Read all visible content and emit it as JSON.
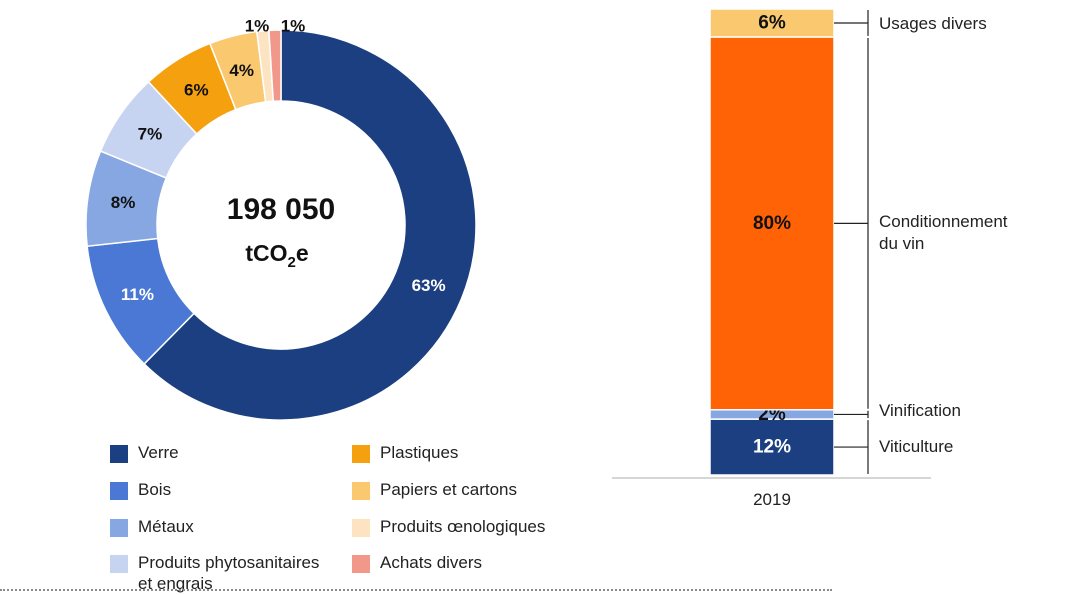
{
  "chart_data": [
    {
      "type": "pie",
      "center_value": "198 050",
      "center_unit": {
        "prefix": "tCO",
        "subscript": "2",
        "suffix": "e"
      },
      "categories": [
        "Verre",
        "Bois",
        "Métaux",
        "Produits phytosanitaires et engrais",
        "Plastiques",
        "Papiers et cartons",
        "Produits œnologiques",
        "Achats divers"
      ],
      "values": [
        63,
        11,
        8,
        7,
        6,
        4,
        1,
        1
      ],
      "labels": [
        "63%",
        "11%",
        "8%",
        "7%",
        "6%",
        "4%",
        "1%",
        "1%"
      ],
      "colors": [
        "#1c3f82",
        "#4a78d4",
        "#87a7e3",
        "#c6d4f1",
        "#f5a00f",
        "#fac86f",
        "#fce4c2",
        "#f2988a"
      ],
      "label_colors": [
        "#ffffff",
        "#ffffff",
        "#111111",
        "#111111",
        "#111111",
        "#111111",
        "#111111",
        "#111111"
      ],
      "legend": [
        {
          "label": "Verre",
          "color": "#1c3f82"
        },
        {
          "label": "Plastiques",
          "color": "#f5a00f"
        },
        {
          "label": "Bois",
          "color": "#4a78d4"
        },
        {
          "label": "Papiers et cartons",
          "color": "#fac86f"
        },
        {
          "label": "Métaux",
          "color": "#87a7e3"
        },
        {
          "label": "Produits œnologiques",
          "color": "#fce4c2"
        },
        {
          "label": "Produits phytosanitaires et engrais",
          "color": "#c6d4f1"
        },
        {
          "label": "Achats divers",
          "color": "#f2988a"
        }
      ],
      "legend_placement": "bottom"
    },
    {
      "type": "bar",
      "stacked": true,
      "categories": [
        "2019"
      ],
      "series": [
        {
          "name": "Viticulture",
          "values": [
            12
          ],
          "label": "12%",
          "color": "#1c3f82",
          "label_color": "#ffffff"
        },
        {
          "name": "Vinification",
          "values": [
            2
          ],
          "label": "2%",
          "color": "#87a7e3",
          "label_color": "#111111"
        },
        {
          "name": "Conditionnement du vin",
          "values": [
            80
          ],
          "label": "80%",
          "color": "#ff6305",
          "label_color": "#111111"
        },
        {
          "name": "Usages divers",
          "values": [
            6
          ],
          "label": "6%",
          "color": "#fac86f",
          "label_color": "#111111"
        }
      ],
      "ylim": [
        0,
        100
      ],
      "grid": false,
      "legend_placement": "right"
    }
  ]
}
